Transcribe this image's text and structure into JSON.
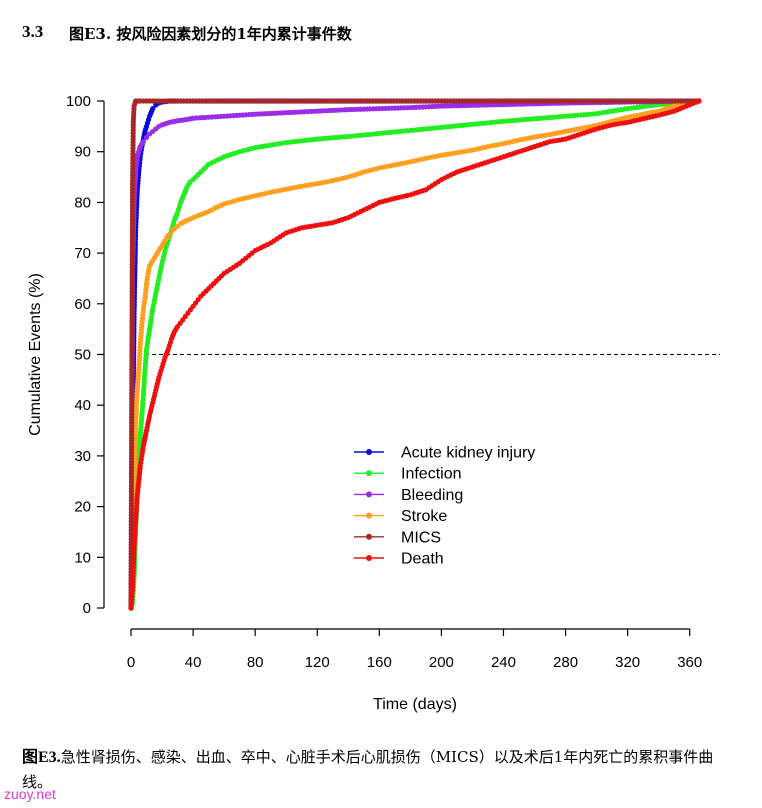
{
  "header": {
    "section_number": "3.3",
    "title": "图E3. 按风险因素划分的1年内累计事件数"
  },
  "caption": {
    "label": "图E3.",
    "text": "急性肾损伤、感染、出血、卒中、心脏手术后心肌损伤（MICS）以及术后1年内死亡的累积事件曲线。"
  },
  "watermark": "zuoy.net",
  "chart_data": {
    "type": "line",
    "xlabel": "Time (days)",
    "ylabel": "Cumulative Events (%)",
    "xlim": [
      0,
      380
    ],
    "ylim": [
      0,
      100
    ],
    "xticks": [
      0,
      40,
      80,
      120,
      160,
      200,
      240,
      280,
      320,
      360
    ],
    "yticks": [
      0,
      10,
      20,
      30,
      40,
      50,
      60,
      70,
      80,
      90,
      100
    ],
    "reference_line": {
      "y": 50,
      "style": "dashed"
    },
    "legend_position": "center",
    "series": [
      {
        "name": "Acute kidney injury",
        "color": "#0a0ad8",
        "x": [
          0,
          1,
          2,
          3,
          4,
          5,
          6,
          7,
          8,
          9,
          10,
          12,
          14,
          16,
          18,
          20,
          25,
          30,
          40,
          60,
          100,
          200,
          300,
          366
        ],
        "y": [
          0,
          28,
          58,
          74.5,
          82,
          86,
          89,
          91,
          92.5,
          94,
          95,
          97,
          98.5,
          99.2,
          99.6,
          99.8,
          100,
          100,
          100,
          100,
          100,
          100,
          100,
          100
        ]
      },
      {
        "name": "Infection",
        "color": "#22ee22",
        "x": [
          0,
          1,
          2,
          3,
          4,
          5,
          6,
          7,
          8,
          9,
          10,
          12,
          14,
          16,
          18,
          20,
          22,
          24,
          26,
          28,
          30,
          32,
          34,
          36,
          38,
          40,
          45,
          50,
          60,
          70,
          80,
          90,
          100,
          120,
          140,
          160,
          180,
          200,
          220,
          240,
          260,
          280,
          300,
          320,
          340,
          366
        ],
        "y": [
          0,
          1,
          6,
          15,
          23,
          28,
          34,
          38,
          42,
          47,
          51,
          55,
          59,
          62,
          65,
          68,
          70.5,
          72.5,
          74.5,
          76.5,
          78,
          80,
          81.5,
          83,
          84,
          84.5,
          86,
          87.5,
          89,
          90,
          90.8,
          91.3,
          91.8,
          92.5,
          93,
          93.6,
          94.2,
          94.8,
          95.4,
          96,
          96.5,
          97,
          97.5,
          98.5,
          99.3,
          100
        ]
      },
      {
        "name": "Bleeding",
        "color": "#9a2ee8",
        "x": [
          0,
          1,
          2,
          3,
          4,
          5,
          6,
          7,
          8,
          10,
          12,
          14,
          16,
          18,
          20,
          25,
          30,
          35,
          40,
          50,
          60,
          80,
          100,
          120,
          140,
          160,
          180,
          200,
          240,
          280,
          320,
          366
        ],
        "y": [
          0,
          66,
          80,
          86,
          89,
          90,
          91,
          91.5,
          92,
          92.8,
          93.5,
          94,
          94.5,
          95,
          95.3,
          95.8,
          96.1,
          96.3,
          96.6,
          96.8,
          97,
          97.4,
          97.7,
          98,
          98.3,
          98.5,
          98.7,
          99,
          99.3,
          99.6,
          99.8,
          100
        ]
      },
      {
        "name": "Stroke",
        "color": "#ffa020",
        "x": [
          0,
          1,
          2,
          3,
          4,
          5,
          6,
          7,
          8,
          9,
          10,
          11,
          12,
          14,
          16,
          18,
          20,
          22,
          24,
          26,
          28,
          30,
          32,
          35,
          40,
          45,
          50,
          55,
          60,
          70,
          80,
          90,
          100,
          110,
          120,
          130,
          140,
          150,
          160,
          170,
          180,
          190,
          200,
          210,
          220,
          230,
          240,
          250,
          260,
          270,
          280,
          290,
          300,
          310,
          320,
          330,
          340,
          350,
          366
        ],
        "y": [
          0,
          5,
          25,
          36,
          43,
          47,
          52,
          56,
          59,
          61,
          64,
          66,
          67.5,
          68.5,
          69.5,
          70.5,
          71.5,
          72.5,
          73.5,
          74.2,
          74.8,
          75.3,
          75.8,
          76.3,
          77,
          77.6,
          78.2,
          79,
          79.7,
          80.6,
          81.3,
          82,
          82.6,
          83.2,
          83.7,
          84.3,
          85,
          86,
          86.8,
          87.4,
          88,
          88.7,
          89.3,
          89.8,
          90.3,
          91,
          91.6,
          92.3,
          92.9,
          93.4,
          94,
          94.6,
          95.2,
          96,
          96.8,
          97.4,
          98,
          99,
          100
        ]
      },
      {
        "name": "MICS",
        "color": "#a52828",
        "x": [
          0,
          0.5,
          1,
          1.5,
          2,
          3,
          4,
          5,
          6,
          10,
          20,
          40,
          80,
          120,
          160,
          200,
          240,
          280,
          320,
          366
        ],
        "y": [
          0,
          43,
          83,
          96,
          99,
          100,
          100,
          100,
          100,
          100,
          100,
          100,
          100,
          100,
          100,
          100,
          100,
          100,
          100,
          100
        ]
      },
      {
        "name": "Death",
        "color": "#ee1010",
        "x": [
          0,
          1,
          2,
          3,
          4,
          5,
          6,
          7,
          8,
          9,
          10,
          12,
          14,
          16,
          18,
          20,
          22,
          24,
          26,
          28,
          30,
          35,
          40,
          45,
          50,
          55,
          60,
          70,
          80,
          90,
          100,
          110,
          120,
          130,
          140,
          150,
          160,
          170,
          180,
          190,
          200,
          210,
          220,
          230,
          240,
          250,
          260,
          270,
          280,
          290,
          300,
          310,
          320,
          330,
          340,
          350,
          366
        ],
        "y": [
          0,
          4,
          12,
          17,
          22,
          25,
          28,
          30,
          32,
          33.5,
          35,
          38,
          40.5,
          43,
          45.5,
          47.5,
          49.5,
          51,
          53,
          54.5,
          55.5,
          57.5,
          59.5,
          61.5,
          63,
          64.5,
          66,
          68,
          70.5,
          72,
          74,
          75,
          75.5,
          76,
          77,
          78.5,
          80,
          80.8,
          81.5,
          82.5,
          84.5,
          86,
          87,
          88,
          89,
          90,
          91,
          92,
          92.5,
          93.5,
          94.5,
          95.3,
          95.8,
          96.5,
          97.2,
          98,
          100
        ]
      }
    ]
  }
}
